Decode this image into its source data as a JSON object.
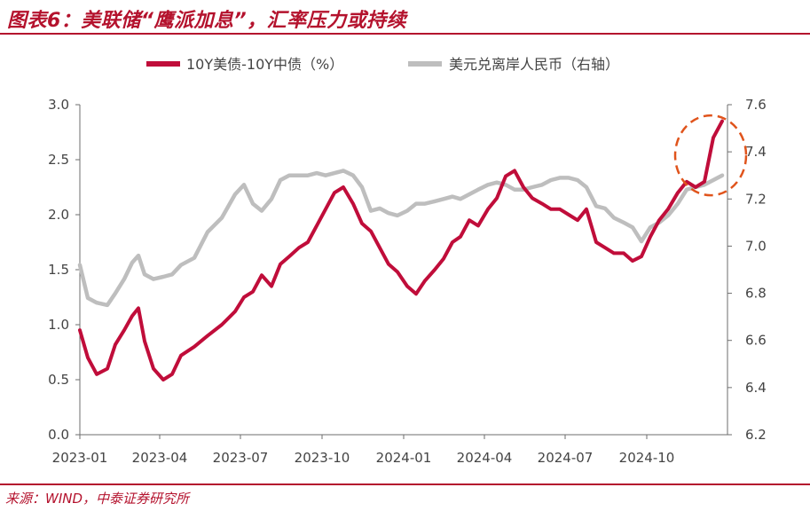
{
  "header": {
    "title": "图表6：美联储“鹰派加息”，汇率压力或持续"
  },
  "footer": {
    "source": "来源：WIND，中泰证券研究所"
  },
  "colors": {
    "brand": "#b4122d",
    "spread": "#c00d3a",
    "usdcnh": "#bebebe",
    "highlight": "#e0541c"
  },
  "chart_data": {
    "type": "line",
    "title": "图表6：美联储“鹰派加息”，汇率压力或持续",
    "legend_position": "top",
    "grid": false,
    "x_ticks": [
      "2023-01",
      "2023-04",
      "2023-07",
      "2023-10",
      "2024-01",
      "2024-04",
      "2024-07",
      "2024-10"
    ],
    "xlim": [
      "2023-01-01",
      "2024-12-31"
    ],
    "y_left": {
      "label": "",
      "ticks": [
        "0.0",
        "0.5",
        "1.0",
        "1.5",
        "2.0",
        "2.5",
        "3.0"
      ],
      "lim": [
        0,
        3
      ]
    },
    "y_right": {
      "label": "",
      "ticks": [
        "6.2",
        "6.4",
        "6.6",
        "6.8",
        "7.0",
        "7.2",
        "7.4",
        "7.6"
      ],
      "lim": [
        6.2,
        7.6
      ]
    },
    "annotation": {
      "type": "dashed-circle",
      "near": "2024-12",
      "color": "#e0541c"
    },
    "series": [
      {
        "name": "10Y美债-10Y中债（%）",
        "axis": "left",
        "color": "#c00d3a",
        "points": [
          [
            "2023-01-01",
            0.95
          ],
          [
            "2023-01-10",
            0.7
          ],
          [
            "2023-01-20",
            0.55
          ],
          [
            "2023-02-01",
            0.6
          ],
          [
            "2023-02-10",
            0.82
          ],
          [
            "2023-02-20",
            0.95
          ],
          [
            "2023-03-01",
            1.08
          ],
          [
            "2023-03-08",
            1.15
          ],
          [
            "2023-03-15",
            0.85
          ],
          [
            "2023-03-25",
            0.6
          ],
          [
            "2023-04-05",
            0.5
          ],
          [
            "2023-04-15",
            0.55
          ],
          [
            "2023-04-25",
            0.72
          ],
          [
            "2023-05-10",
            0.8
          ],
          [
            "2023-05-25",
            0.9
          ],
          [
            "2023-06-10",
            1.0
          ],
          [
            "2023-06-25",
            1.12
          ],
          [
            "2023-07-05",
            1.25
          ],
          [
            "2023-07-15",
            1.3
          ],
          [
            "2023-07-25",
            1.45
          ],
          [
            "2023-08-05",
            1.35
          ],
          [
            "2023-08-15",
            1.55
          ],
          [
            "2023-08-25",
            1.62
          ],
          [
            "2023-09-05",
            1.7
          ],
          [
            "2023-09-15",
            1.75
          ],
          [
            "2023-09-25",
            1.9
          ],
          [
            "2023-10-05",
            2.05
          ],
          [
            "2023-10-15",
            2.2
          ],
          [
            "2023-10-25",
            2.25
          ],
          [
            "2023-11-05",
            2.1
          ],
          [
            "2023-11-15",
            1.92
          ],
          [
            "2023-11-25",
            1.85
          ],
          [
            "2023-12-05",
            1.7
          ],
          [
            "2023-12-15",
            1.55
          ],
          [
            "2023-12-25",
            1.48
          ],
          [
            "2024-01-05",
            1.35
          ],
          [
            "2024-01-15",
            1.28
          ],
          [
            "2024-01-25",
            1.4
          ],
          [
            "2024-02-05",
            1.5
          ],
          [
            "2024-02-15",
            1.6
          ],
          [
            "2024-02-25",
            1.75
          ],
          [
            "2024-03-05",
            1.8
          ],
          [
            "2024-03-15",
            1.95
          ],
          [
            "2024-03-25",
            1.9
          ],
          [
            "2024-04-05",
            2.05
          ],
          [
            "2024-04-15",
            2.15
          ],
          [
            "2024-04-25",
            2.35
          ],
          [
            "2024-05-05",
            2.4
          ],
          [
            "2024-05-15",
            2.25
          ],
          [
            "2024-05-25",
            2.15
          ],
          [
            "2024-06-05",
            2.1
          ],
          [
            "2024-06-15",
            2.05
          ],
          [
            "2024-06-25",
            2.05
          ],
          [
            "2024-07-05",
            2.0
          ],
          [
            "2024-07-15",
            1.95
          ],
          [
            "2024-07-25",
            2.05
          ],
          [
            "2024-08-05",
            1.75
          ],
          [
            "2024-08-15",
            1.7
          ],
          [
            "2024-08-25",
            1.65
          ],
          [
            "2024-09-05",
            1.65
          ],
          [
            "2024-09-15",
            1.58
          ],
          [
            "2024-09-25",
            1.62
          ],
          [
            "2024-10-05",
            1.8
          ],
          [
            "2024-10-15",
            1.95
          ],
          [
            "2024-10-25",
            2.05
          ],
          [
            "2024-11-05",
            2.2
          ],
          [
            "2024-11-15",
            2.3
          ],
          [
            "2024-11-25",
            2.25
          ],
          [
            "2024-12-05",
            2.3
          ],
          [
            "2024-12-15",
            2.7
          ],
          [
            "2024-12-25",
            2.85
          ]
        ]
      },
      {
        "name": "美元兑离岸人民币（右轴）",
        "axis": "right",
        "color": "#bebebe",
        "points": [
          [
            "2023-01-01",
            6.92
          ],
          [
            "2023-01-10",
            6.78
          ],
          [
            "2023-01-20",
            6.76
          ],
          [
            "2023-02-01",
            6.75
          ],
          [
            "2023-02-10",
            6.8
          ],
          [
            "2023-02-20",
            6.86
          ],
          [
            "2023-03-01",
            6.93
          ],
          [
            "2023-03-08",
            6.96
          ],
          [
            "2023-03-15",
            6.88
          ],
          [
            "2023-03-25",
            6.86
          ],
          [
            "2023-04-05",
            6.87
          ],
          [
            "2023-04-15",
            6.88
          ],
          [
            "2023-04-25",
            6.92
          ],
          [
            "2023-05-10",
            6.95
          ],
          [
            "2023-05-25",
            7.06
          ],
          [
            "2023-06-10",
            7.12
          ],
          [
            "2023-06-25",
            7.22
          ],
          [
            "2023-07-05",
            7.26
          ],
          [
            "2023-07-15",
            7.18
          ],
          [
            "2023-07-25",
            7.15
          ],
          [
            "2023-08-05",
            7.2
          ],
          [
            "2023-08-15",
            7.28
          ],
          [
            "2023-08-25",
            7.3
          ],
          [
            "2023-09-05",
            7.3
          ],
          [
            "2023-09-15",
            7.3
          ],
          [
            "2023-09-25",
            7.31
          ],
          [
            "2023-10-05",
            7.3
          ],
          [
            "2023-10-15",
            7.31
          ],
          [
            "2023-10-25",
            7.32
          ],
          [
            "2023-11-05",
            7.3
          ],
          [
            "2023-11-15",
            7.25
          ],
          [
            "2023-11-25",
            7.15
          ],
          [
            "2023-12-05",
            7.16
          ],
          [
            "2023-12-15",
            7.14
          ],
          [
            "2023-12-25",
            7.13
          ],
          [
            "2024-01-05",
            7.15
          ],
          [
            "2024-01-15",
            7.18
          ],
          [
            "2024-01-25",
            7.18
          ],
          [
            "2024-02-05",
            7.19
          ],
          [
            "2024-02-15",
            7.2
          ],
          [
            "2024-02-25",
            7.21
          ],
          [
            "2024-03-05",
            7.2
          ],
          [
            "2024-03-15",
            7.22
          ],
          [
            "2024-03-25",
            7.24
          ],
          [
            "2024-04-05",
            7.26
          ],
          [
            "2024-04-15",
            7.27
          ],
          [
            "2024-04-25",
            7.26
          ],
          [
            "2024-05-05",
            7.24
          ],
          [
            "2024-05-15",
            7.24
          ],
          [
            "2024-05-25",
            7.25
          ],
          [
            "2024-06-05",
            7.26
          ],
          [
            "2024-06-15",
            7.28
          ],
          [
            "2024-06-25",
            7.29
          ],
          [
            "2024-07-05",
            7.29
          ],
          [
            "2024-07-15",
            7.28
          ],
          [
            "2024-07-25",
            7.25
          ],
          [
            "2024-08-05",
            7.17
          ],
          [
            "2024-08-15",
            7.16
          ],
          [
            "2024-08-25",
            7.12
          ],
          [
            "2024-09-05",
            7.1
          ],
          [
            "2024-09-15",
            7.08
          ],
          [
            "2024-09-25",
            7.02
          ],
          [
            "2024-10-05",
            7.08
          ],
          [
            "2024-10-15",
            7.1
          ],
          [
            "2024-10-25",
            7.13
          ],
          [
            "2024-11-05",
            7.18
          ],
          [
            "2024-11-15",
            7.24
          ],
          [
            "2024-11-25",
            7.25
          ],
          [
            "2024-12-05",
            7.26
          ],
          [
            "2024-12-15",
            7.28
          ],
          [
            "2024-12-25",
            7.3
          ]
        ]
      }
    ]
  }
}
